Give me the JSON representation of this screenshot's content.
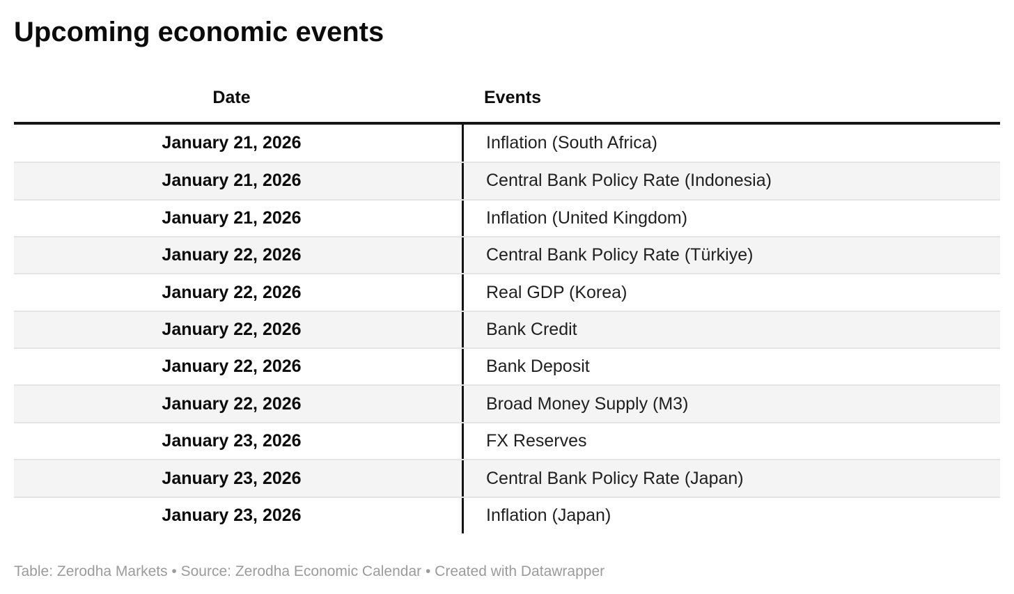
{
  "title": "Upcoming economic events",
  "chart_data": {
    "type": "table",
    "title": "Upcoming economic events",
    "columns": [
      "Date",
      "Events"
    ],
    "rows": [
      [
        "January 21, 2026",
        "Inflation (South Africa)"
      ],
      [
        "January 21, 2026",
        "Central Bank Policy Rate (Indonesia)"
      ],
      [
        "January 21, 2026",
        "Inflation (United Kingdom)"
      ],
      [
        "January 22, 2026",
        "Central Bank Policy Rate (Türkiye)"
      ],
      [
        "January 22, 2026",
        "Real GDP (Korea)"
      ],
      [
        "January 22, 2026",
        "Bank Credit"
      ],
      [
        "January 22, 2026",
        "Bank Deposit"
      ],
      [
        "January 22, 2026",
        "Broad Money Supply (M3)"
      ],
      [
        "January 23, 2026",
        "FX Reserves"
      ],
      [
        "January 23, 2026",
        "Central Bank Policy Rate (Japan)"
      ],
      [
        "January 23, 2026",
        "Inflation (Japan)"
      ]
    ],
    "layout_hints": {
      "date_column_align": "center",
      "events_column_align": "left",
      "zebra_striping": true
    }
  },
  "table": {
    "columns": [
      {
        "label": "Date"
      },
      {
        "label": "Events"
      }
    ],
    "rows": [
      {
        "date": "January 21, 2026",
        "event": "Inflation (South Africa)"
      },
      {
        "date": "January 21, 2026",
        "event": "Central Bank Policy Rate (Indonesia)"
      },
      {
        "date": "January 21, 2026",
        "event": "Inflation (United Kingdom)"
      },
      {
        "date": "January 22, 2026",
        "event": "Central Bank Policy Rate (Türkiye)"
      },
      {
        "date": "January 22, 2026",
        "event": "Real GDP (Korea)"
      },
      {
        "date": "January 22, 2026",
        "event": "Bank Credit"
      },
      {
        "date": "January 22, 2026",
        "event": "Bank Deposit"
      },
      {
        "date": "January 22, 2026",
        "event": "Broad Money Supply (M3)"
      },
      {
        "date": "January 23, 2026",
        "event": "FX Reserves"
      },
      {
        "date": "January 23, 2026",
        "event": "Central Bank Policy Rate (Japan)"
      },
      {
        "date": "January 23, 2026",
        "event": "Inflation (Japan)"
      }
    ]
  },
  "footer": {
    "text": "Table: Zerodha Markets • Source: Zerodha Economic Calendar • Created with Datawrapper"
  },
  "colors": {
    "title_text": "#0b0b0b",
    "body_text": "#1f1f1f",
    "header_rule": "#151515",
    "column_divider": "#141414",
    "row_stripe": "#f4f4f4",
    "row_divider": "#e4e4e4",
    "footer_text": "#9b9b9b",
    "background": "#ffffff"
  }
}
